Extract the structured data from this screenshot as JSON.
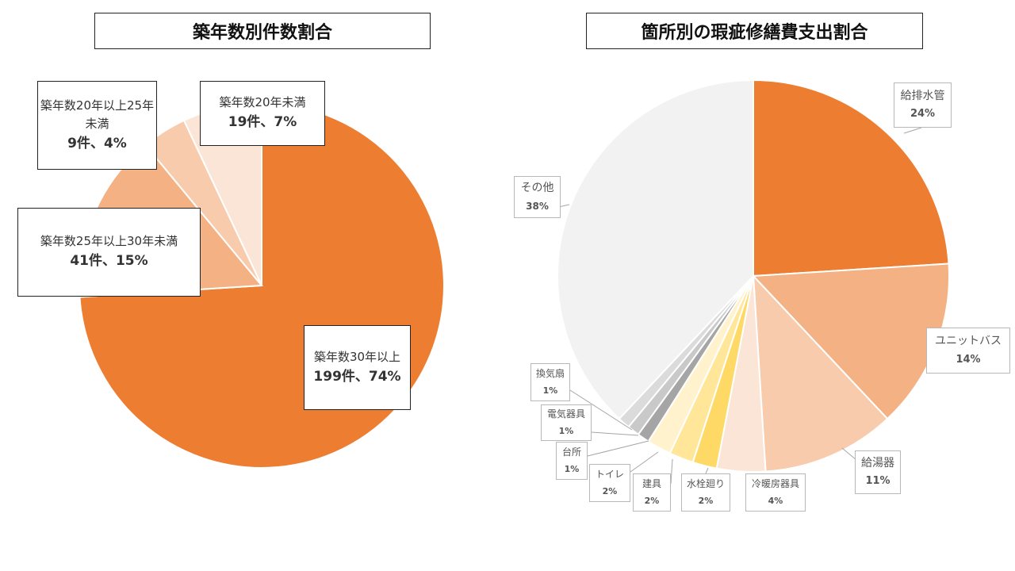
{
  "chart_data": [
    {
      "type": "pie",
      "title": "築年数別件数割合",
      "slices": [
        {
          "label": "築年数30年以上",
          "count": "199件",
          "percent": 74,
          "value_text": "199件、74%",
          "color": "#ED7D31"
        },
        {
          "label": "築年数25年以上30年未満",
          "count": "41件",
          "percent": 15,
          "value_text": "41件、15%",
          "color": "#F4B183"
        },
        {
          "label": "築年数20年以上25年未満",
          "count": "9件",
          "percent": 4,
          "value_text": "9件、4%",
          "color": "#F8CBAD"
        },
        {
          "label": "築年数20年未満",
          "count": "19件",
          "percent": 7,
          "value_text": "19件、7%",
          "color": "#FBE5D6"
        }
      ]
    },
    {
      "type": "pie",
      "title": "箇所別の瑕疵修繕費支出割合",
      "slices": [
        {
          "label": "給排水管",
          "percent": 24,
          "value_text": "24%",
          "color": "#ED7D31"
        },
        {
          "label": "ユニットバス",
          "percent": 14,
          "value_text": "14%",
          "color": "#F4B183"
        },
        {
          "label": "給湯器",
          "percent": 11,
          "value_text": "11%",
          "color": "#F8CBAD"
        },
        {
          "label": "冷暖房器具",
          "percent": 4,
          "value_text": "4%",
          "color": "#FBE5D6"
        },
        {
          "label": "水栓廻り",
          "percent": 2,
          "value_text": "2%",
          "color": "#FFD966"
        },
        {
          "label": "建具",
          "percent": 2,
          "value_text": "2%",
          "color": "#FFE699"
        },
        {
          "label": "トイレ",
          "percent": 2,
          "value_text": "2%",
          "color": "#FFF2CC"
        },
        {
          "label": "台所",
          "percent": 1,
          "value_text": "1%",
          "color": "#A5A5A5"
        },
        {
          "label": "電気器具",
          "percent": 1,
          "value_text": "1%",
          "color": "#C9C9C9"
        },
        {
          "label": "換気扇",
          "percent": 1,
          "value_text": "1%",
          "color": "#DBDBDB"
        },
        {
          "label": "その他",
          "percent": 38,
          "value_text": "38%",
          "color": "#F2F2F2"
        }
      ]
    }
  ]
}
